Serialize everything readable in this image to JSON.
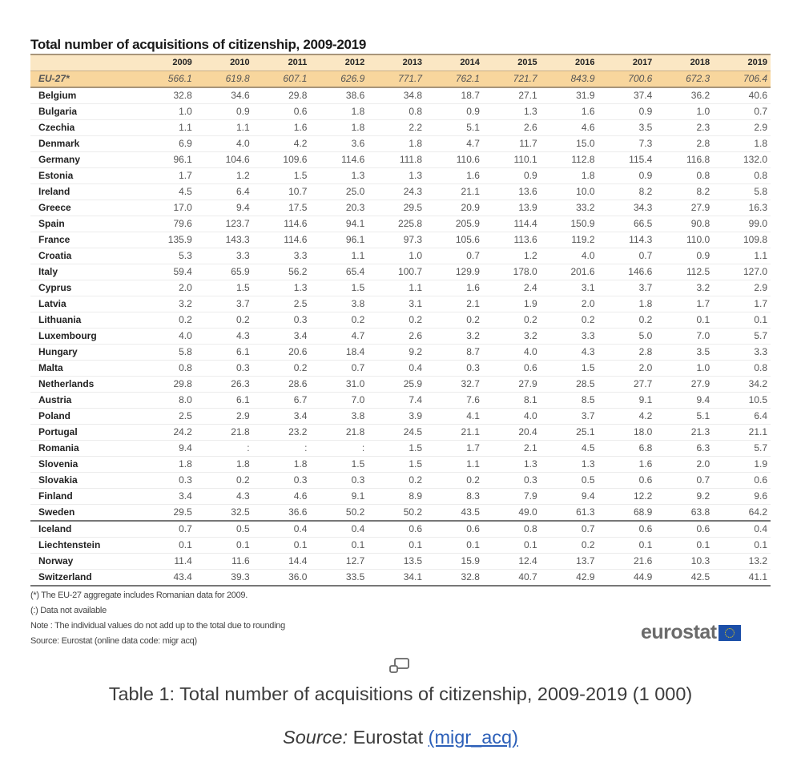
{
  "table": {
    "title": "Total number of acquisitions of citizenship, 2009-2019",
    "years": [
      "2009",
      "2010",
      "2011",
      "2012",
      "2013",
      "2014",
      "2015",
      "2016",
      "2017",
      "2018",
      "2019"
    ],
    "total_row": {
      "label": "EU-27*",
      "values": [
        "566.1",
        "619.8",
        "607.1",
        "626.9",
        "771.7",
        "762.1",
        "721.7",
        "843.9",
        "700.6",
        "672.3",
        "706.4"
      ]
    },
    "rows": [
      {
        "label": "Belgium",
        "values": [
          "32.8",
          "34.6",
          "29.8",
          "38.6",
          "34.8",
          "18.7",
          "27.1",
          "31.9",
          "37.4",
          "36.2",
          "40.6"
        ]
      },
      {
        "label": "Bulgaria",
        "values": [
          "1.0",
          "0.9",
          "0.6",
          "1.8",
          "0.8",
          "0.9",
          "1.3",
          "1.6",
          "0.9",
          "1.0",
          "0.7"
        ]
      },
      {
        "label": "Czechia",
        "values": [
          "1.1",
          "1.1",
          "1.6",
          "1.8",
          "2.2",
          "5.1",
          "2.6",
          "4.6",
          "3.5",
          "2.3",
          "2.9"
        ]
      },
      {
        "label": "Denmark",
        "values": [
          "6.9",
          "4.0",
          "4.2",
          "3.6",
          "1.8",
          "4.7",
          "11.7",
          "15.0",
          "7.3",
          "2.8",
          "1.8"
        ]
      },
      {
        "label": "Germany",
        "values": [
          "96.1",
          "104.6",
          "109.6",
          "114.6",
          "111.8",
          "110.6",
          "110.1",
          "112.8",
          "115.4",
          "116.8",
          "132.0"
        ]
      },
      {
        "label": "Estonia",
        "values": [
          "1.7",
          "1.2",
          "1.5",
          "1.3",
          "1.3",
          "1.6",
          "0.9",
          "1.8",
          "0.9",
          "0.8",
          "0.8"
        ]
      },
      {
        "label": "Ireland",
        "values": [
          "4.5",
          "6.4",
          "10.7",
          "25.0",
          "24.3",
          "21.1",
          "13.6",
          "10.0",
          "8.2",
          "8.2",
          "5.8"
        ]
      },
      {
        "label": "Greece",
        "values": [
          "17.0",
          "9.4",
          "17.5",
          "20.3",
          "29.5",
          "20.9",
          "13.9",
          "33.2",
          "34.3",
          "27.9",
          "16.3"
        ]
      },
      {
        "label": "Spain",
        "values": [
          "79.6",
          "123.7",
          "114.6",
          "94.1",
          "225.8",
          "205.9",
          "114.4",
          "150.9",
          "66.5",
          "90.8",
          "99.0"
        ]
      },
      {
        "label": "France",
        "values": [
          "135.9",
          "143.3",
          "114.6",
          "96.1",
          "97.3",
          "105.6",
          "113.6",
          "119.2",
          "114.3",
          "110.0",
          "109.8"
        ]
      },
      {
        "label": "Croatia",
        "values": [
          "5.3",
          "3.3",
          "3.3",
          "1.1",
          "1.0",
          "0.7",
          "1.2",
          "4.0",
          "0.7",
          "0.9",
          "1.1"
        ]
      },
      {
        "label": "Italy",
        "values": [
          "59.4",
          "65.9",
          "56.2",
          "65.4",
          "100.7",
          "129.9",
          "178.0",
          "201.6",
          "146.6",
          "112.5",
          "127.0"
        ]
      },
      {
        "label": "Cyprus",
        "values": [
          "2.0",
          "1.5",
          "1.3",
          "1.5",
          "1.1",
          "1.6",
          "2.4",
          "3.1",
          "3.7",
          "3.2",
          "2.9"
        ]
      },
      {
        "label": "Latvia",
        "values": [
          "3.2",
          "3.7",
          "2.5",
          "3.8",
          "3.1",
          "2.1",
          "1.9",
          "2.0",
          "1.8",
          "1.7",
          "1.7"
        ]
      },
      {
        "label": "Lithuania",
        "values": [
          "0.2",
          "0.2",
          "0.3",
          "0.2",
          "0.2",
          "0.2",
          "0.2",
          "0.2",
          "0.2",
          "0.1",
          "0.1"
        ]
      },
      {
        "label": "Luxembourg",
        "values": [
          "4.0",
          "4.3",
          "3.4",
          "4.7",
          "2.6",
          "3.2",
          "3.2",
          "3.3",
          "5.0",
          "7.0",
          "5.7"
        ]
      },
      {
        "label": "Hungary",
        "values": [
          "5.8",
          "6.1",
          "20.6",
          "18.4",
          "9.2",
          "8.7",
          "4.0",
          "4.3",
          "2.8",
          "3.5",
          "3.3"
        ]
      },
      {
        "label": "Malta",
        "values": [
          "0.8",
          "0.3",
          "0.2",
          "0.7",
          "0.4",
          "0.3",
          "0.6",
          "1.5",
          "2.0",
          "1.0",
          "0.8"
        ]
      },
      {
        "label": "Netherlands",
        "values": [
          "29.8",
          "26.3",
          "28.6",
          "31.0",
          "25.9",
          "32.7",
          "27.9",
          "28.5",
          "27.7",
          "27.9",
          "34.2"
        ]
      },
      {
        "label": "Austria",
        "values": [
          "8.0",
          "6.1",
          "6.7",
          "7.0",
          "7.4",
          "7.6",
          "8.1",
          "8.5",
          "9.1",
          "9.4",
          "10.5"
        ]
      },
      {
        "label": "Poland",
        "values": [
          "2.5",
          "2.9",
          "3.4",
          "3.8",
          "3.9",
          "4.1",
          "4.0",
          "3.7",
          "4.2",
          "5.1",
          "6.4"
        ]
      },
      {
        "label": "Portugal",
        "values": [
          "24.2",
          "21.8",
          "23.2",
          "21.8",
          "24.5",
          "21.1",
          "20.4",
          "25.1",
          "18.0",
          "21.3",
          "21.1"
        ]
      },
      {
        "label": "Romania",
        "values": [
          "9.4",
          ":",
          ":",
          ":",
          "1.5",
          "1.7",
          "2.1",
          "4.5",
          "6.8",
          "6.3",
          "5.7"
        ]
      },
      {
        "label": "Slovenia",
        "values": [
          "1.8",
          "1.8",
          "1.8",
          "1.5",
          "1.5",
          "1.1",
          "1.3",
          "1.3",
          "1.6",
          "2.0",
          "1.9"
        ]
      },
      {
        "label": "Slovakia",
        "values": [
          "0.3",
          "0.2",
          "0.3",
          "0.3",
          "0.2",
          "0.2",
          "0.3",
          "0.5",
          "0.6",
          "0.7",
          "0.6"
        ]
      },
      {
        "label": "Finland",
        "values": [
          "3.4",
          "4.3",
          "4.6",
          "9.1",
          "8.9",
          "8.3",
          "7.9",
          "9.4",
          "12.2",
          "9.2",
          "9.6"
        ]
      },
      {
        "label": "Sweden",
        "values": [
          "29.5",
          "32.5",
          "36.6",
          "50.2",
          "50.2",
          "43.5",
          "49.0",
          "61.3",
          "68.9",
          "63.8",
          "64.2"
        ]
      },
      {
        "label": "Iceland",
        "values": [
          "0.7",
          "0.5",
          "0.4",
          "0.4",
          "0.6",
          "0.6",
          "0.8",
          "0.7",
          "0.6",
          "0.6",
          "0.4"
        ]
      },
      {
        "label": "Liechtenstein",
        "values": [
          "0.1",
          "0.1",
          "0.1",
          "0.1",
          "0.1",
          "0.1",
          "0.1",
          "0.2",
          "0.1",
          "0.1",
          "0.1"
        ]
      },
      {
        "label": "Norway",
        "values": [
          "11.4",
          "11.6",
          "14.4",
          "12.7",
          "13.5",
          "15.9",
          "12.4",
          "13.7",
          "21.6",
          "10.3",
          "13.2"
        ]
      },
      {
        "label": "Switzerland",
        "values": [
          "43.4",
          "39.3",
          "36.0",
          "33.5",
          "34.1",
          "32.8",
          "40.7",
          "42.9",
          "44.9",
          "42.5",
          "41.1"
        ]
      }
    ],
    "notes": [
      "(*) The EU-27 aggregate includes Romanian data for 2009.",
      "(:) Data not available",
      "Note : The individual values do not add up to the total due to rounding",
      "Source: Eurostat (online data code: migr acq)"
    ],
    "logo_text": "eurostat"
  },
  "caption": "Table 1: Total number of acquisitions of citizenship, 2009-2019 (1 000)",
  "source": {
    "label": "Source:",
    "text": " Eurostat ",
    "link": "(migr_acq)"
  },
  "icons": {
    "expand": "expand-image-icon"
  }
}
